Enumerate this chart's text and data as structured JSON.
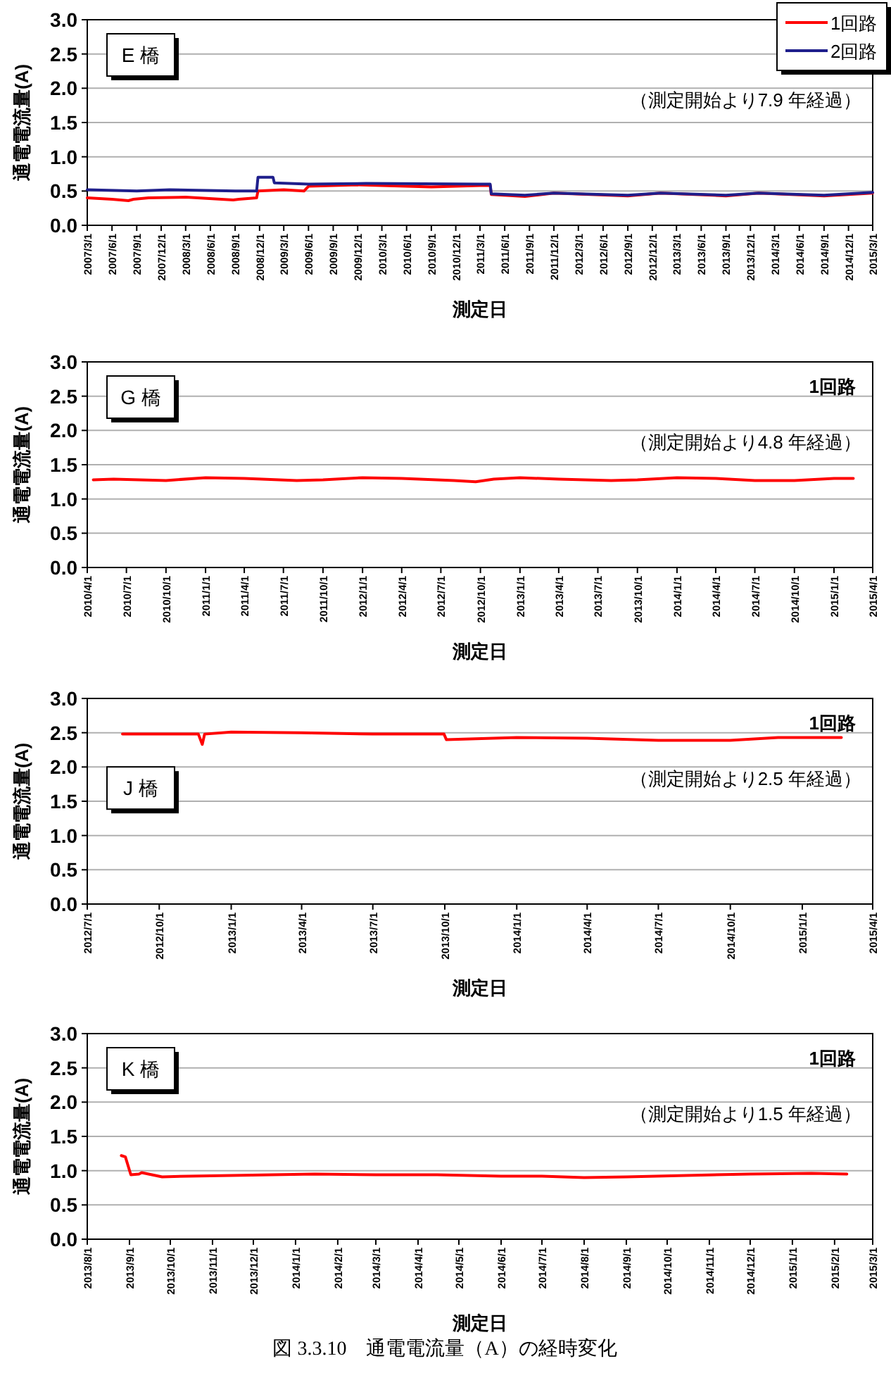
{
  "chart_data": [
    {
      "type": "line",
      "title": "E 橋",
      "xlabel": "測定日",
      "ylabel": "通電電流量(A)",
      "legend": "top right",
      "grid": "y",
      "xlim": [
        "2007-03-01",
        "2015-03-01"
      ],
      "ylim": [
        0,
        3
      ],
      "yticks": [
        {
          "value": 0,
          "label": "0.0"
        },
        {
          "value": 0.5,
          "label": "0.5"
        },
        {
          "value": 1,
          "label": "1.0"
        },
        {
          "value": 1.5,
          "label": "1.5"
        },
        {
          "value": 2,
          "label": "2.0"
        },
        {
          "value": 2.5,
          "label": "2.5"
        },
        {
          "value": 3,
          "label": "3.0"
        }
      ],
      "xticks": [
        {
          "value": "2007-03-01",
          "label": "2007/3/1"
        },
        {
          "value": "2007-06-01",
          "label": "2007/6/1"
        },
        {
          "value": "2007-09-01",
          "label": "2007/9/1"
        },
        {
          "value": "2007-12-01",
          "label": "2007/12/1"
        },
        {
          "value": "2008-03-01",
          "label": "2008/3/1"
        },
        {
          "value": "2008-06-01",
          "label": "2008/6/1"
        },
        {
          "value": "2008-09-01",
          "label": "2008/9/1"
        },
        {
          "value": "2008-12-01",
          "label": "2008/12/1"
        },
        {
          "value": "2009-03-01",
          "label": "2009/3/1"
        },
        {
          "value": "2009-06-01",
          "label": "2009/6/1"
        },
        {
          "value": "2009-09-01",
          "label": "2009/9/1"
        },
        {
          "value": "2009-12-01",
          "label": "2009/12/1"
        },
        {
          "value": "2010-03-01",
          "label": "2010/3/1"
        },
        {
          "value": "2010-06-01",
          "label": "2010/6/1"
        },
        {
          "value": "2010-09-01",
          "label": "2010/9/1"
        },
        {
          "value": "2010-12-01",
          "label": "2010/12/1"
        },
        {
          "value": "2011-03-01",
          "label": "2011/3/1"
        },
        {
          "value": "2011-06-01",
          "label": "2011/6/1"
        },
        {
          "value": "2011-09-01",
          "label": "2011/9/1"
        },
        {
          "value": "2011-12-01",
          "label": "2011/12/1"
        },
        {
          "value": "2012-03-01",
          "label": "2012/3/1"
        },
        {
          "value": "2012-06-01",
          "label": "2012/6/1"
        },
        {
          "value": "2012-09-01",
          "label": "2012/9/1"
        },
        {
          "value": "2012-12-01",
          "label": "2012/12/1"
        },
        {
          "value": "2013-03-01",
          "label": "2013/3/1"
        },
        {
          "value": "2013-06-01",
          "label": "2013/6/1"
        },
        {
          "value": "2013-09-01",
          "label": "2013/9/1"
        },
        {
          "value": "2013-12-01",
          "label": "2013/12/1"
        },
        {
          "value": "2014-03-01",
          "label": "2014/3/1"
        },
        {
          "value": "2014-06-01",
          "label": "2014/6/1"
        },
        {
          "value": "2014-09-01",
          "label": "2014/9/1"
        },
        {
          "value": "2014-12-01",
          "label": "2014/12/1"
        },
        {
          "value": "2015-03-01",
          "label": "2015/3/1"
        }
      ],
      "annotations": [
        "（測定開始より7.9 年経過）"
      ],
      "series": [
        {
          "name": "1回路",
          "color": "#ff0000",
          "x": [
            "2007-03-01",
            "2007-06-01",
            "2007-08-01",
            "2007-08-20",
            "2007-10-15",
            "2008-03-01",
            "2008-08-25",
            "2008-09-15",
            "2008-11-20",
            "2008-11-25",
            "2009-03-01",
            "2009-05-15",
            "2009-06-01",
            "2009-12-01",
            "2010-03-01",
            "2010-09-01",
            "2011-03-01",
            "2011-04-08",
            "2011-04-12",
            "2011-08-15",
            "2011-12-01",
            "2012-09-01",
            "2013-01-01",
            "2013-09-01",
            "2014-01-01",
            "2014-09-01",
            "2015-03-01"
          ],
          "values": [
            0.4,
            0.38,
            0.36,
            0.38,
            0.4,
            0.41,
            0.37,
            0.38,
            0.4,
            0.5,
            0.52,
            0.5,
            0.57,
            0.59,
            0.58,
            0.56,
            0.58,
            0.58,
            0.45,
            0.42,
            0.47,
            0.43,
            0.47,
            0.43,
            0.47,
            0.43,
            0.47
          ]
        },
        {
          "name": "2回路",
          "color": "#1f1f8c",
          "x": [
            "2007-03-01",
            "2007-09-01",
            "2008-01-01",
            "2008-09-01",
            "2008-11-20",
            "2008-11-25",
            "2009-01-20",
            "2009-01-25",
            "2009-06-01",
            "2010-01-01",
            "2011-03-01",
            "2011-04-08",
            "2011-04-12",
            "2011-08-15",
            "2011-12-01",
            "2012-09-01",
            "2013-01-01",
            "2013-09-01",
            "2014-01-01",
            "2014-09-01",
            "2015-03-01"
          ],
          "values": [
            0.52,
            0.5,
            0.52,
            0.5,
            0.5,
            0.7,
            0.7,
            0.62,
            0.6,
            0.61,
            0.6,
            0.6,
            0.46,
            0.44,
            0.47,
            0.44,
            0.47,
            0.44,
            0.47,
            0.44,
            0.48
          ]
        }
      ]
    },
    {
      "type": "line",
      "title": "G 橋",
      "xlabel": "測定日",
      "ylabel": "通電電流量(A)",
      "grid": "y",
      "xlim": [
        "2010-04-01",
        "2015-04-01"
      ],
      "ylim": [
        0,
        3
      ],
      "yticks": [
        {
          "value": 0,
          "label": "0.0"
        },
        {
          "value": 0.5,
          "label": "0.5"
        },
        {
          "value": 1,
          "label": "1.0"
        },
        {
          "value": 1.5,
          "label": "1.5"
        },
        {
          "value": 2,
          "label": "2.0"
        },
        {
          "value": 2.5,
          "label": "2.5"
        },
        {
          "value": 3,
          "label": "3.0"
        }
      ],
      "xticks": [
        {
          "value": "2010-04-01",
          "label": "2010/4/1"
        },
        {
          "value": "2010-07-01",
          "label": "2010/7/1"
        },
        {
          "value": "2010-10-01",
          "label": "2010/10/1"
        },
        {
          "value": "2011-01-01",
          "label": "2011/1/1"
        },
        {
          "value": "2011-04-01",
          "label": "2011/4/1"
        },
        {
          "value": "2011-07-01",
          "label": "2011/7/1"
        },
        {
          "value": "2011-10-01",
          "label": "2011/10/1"
        },
        {
          "value": "2012-01-01",
          "label": "2012/1/1"
        },
        {
          "value": "2012-04-01",
          "label": "2012/4/1"
        },
        {
          "value": "2012-07-01",
          "label": "2012/7/1"
        },
        {
          "value": "2012-10-01",
          "label": "2012/10/1"
        },
        {
          "value": "2013-01-01",
          "label": "2013/1/1"
        },
        {
          "value": "2013-04-01",
          "label": "2013/4/1"
        },
        {
          "value": "2013-07-01",
          "label": "2013/7/1"
        },
        {
          "value": "2013-10-01",
          "label": "2013/10/1"
        },
        {
          "value": "2014-01-01",
          "label": "2014/1/1"
        },
        {
          "value": "2014-04-01",
          "label": "2014/4/1"
        },
        {
          "value": "2014-07-01",
          "label": "2014/7/1"
        },
        {
          "value": "2014-10-01",
          "label": "2014/10/1"
        },
        {
          "value": "2015-01-01",
          "label": "2015/1/1"
        },
        {
          "value": "2015-04-01",
          "label": "2015/4/1"
        }
      ],
      "annotations": [
        "1回路",
        "（測定開始より4.8 年経過）"
      ],
      "series": [
        {
          "color": "#ff0000",
          "x": [
            "2010-04-15",
            "2010-06-01",
            "2010-10-01",
            "2011-01-01",
            "2011-04-01",
            "2011-08-01",
            "2011-10-01",
            "2012-01-01",
            "2012-04-01",
            "2012-08-01",
            "2012-09-20",
            "2012-11-01",
            "2013-01-01",
            "2013-04-01",
            "2013-08-01",
            "2013-10-01",
            "2014-01-01",
            "2014-04-01",
            "2014-07-01",
            "2014-10-01",
            "2015-01-01",
            "2015-02-15"
          ],
          "values": [
            1.28,
            1.29,
            1.27,
            1.31,
            1.3,
            1.27,
            1.28,
            1.31,
            1.3,
            1.27,
            1.25,
            1.29,
            1.31,
            1.29,
            1.27,
            1.28,
            1.31,
            1.3,
            1.27,
            1.27,
            1.3,
            1.3
          ]
        }
      ]
    },
    {
      "type": "line",
      "title": "J 橋",
      "xlabel": "測定日",
      "ylabel": "通電電流量(A)",
      "grid": "y",
      "xlim": [
        "2012-07-01",
        "2015-04-01"
      ],
      "ylim": [
        0,
        3
      ],
      "yticks": [
        {
          "value": 0,
          "label": "0.0"
        },
        {
          "value": 0.5,
          "label": "0.5"
        },
        {
          "value": 1,
          "label": "1.0"
        },
        {
          "value": 1.5,
          "label": "1.5"
        },
        {
          "value": 2,
          "label": "2.0"
        },
        {
          "value": 2.5,
          "label": "2.5"
        },
        {
          "value": 3,
          "label": "3.0"
        }
      ],
      "xticks": [
        {
          "value": "2012-07-01",
          "label": "2012/7/1"
        },
        {
          "value": "2012-10-01",
          "label": "2012/10/1"
        },
        {
          "value": "2013-01-01",
          "label": "2013/1/1"
        },
        {
          "value": "2013-04-01",
          "label": "2013/4/1"
        },
        {
          "value": "2013-07-01",
          "label": "2013/7/1"
        },
        {
          "value": "2013-10-01",
          "label": "2013/10/1"
        },
        {
          "value": "2014-01-01",
          "label": "2014/1/1"
        },
        {
          "value": "2014-04-01",
          "label": "2014/4/1"
        },
        {
          "value": "2014-07-01",
          "label": "2014/7/1"
        },
        {
          "value": "2014-10-01",
          "label": "2014/10/1"
        },
        {
          "value": "2015-01-01",
          "label": "2015/1/1"
        },
        {
          "value": "2015-04-01",
          "label": "2015/4/1"
        }
      ],
      "annotations": [
        "1回路",
        "（測定開始より2.5 年経過）"
      ],
      "series": [
        {
          "color": "#ff0000",
          "x": [
            "2012-08-15",
            "2012-11-20",
            "2012-11-25",
            "2012-11-28",
            "2013-01-01",
            "2013-04-01",
            "2013-07-01",
            "2013-09-30",
            "2013-10-03",
            "2014-01-01",
            "2014-04-01",
            "2014-07-01",
            "2014-10-01",
            "2014-12-01",
            "2015-02-20"
          ],
          "values": [
            2.48,
            2.48,
            2.33,
            2.48,
            2.51,
            2.5,
            2.48,
            2.48,
            2.4,
            2.43,
            2.42,
            2.39,
            2.39,
            2.43,
            2.43
          ]
        }
      ]
    },
    {
      "type": "line",
      "title": "K 橋",
      "xlabel": "測定日",
      "ylabel": "通電電流量(A)",
      "grid": "y",
      "xlim": [
        "2013-08-01",
        "2015-03-01"
      ],
      "ylim": [
        0,
        3
      ],
      "yticks": [
        {
          "value": 0,
          "label": "0.0"
        },
        {
          "value": 0.5,
          "label": "0.5"
        },
        {
          "value": 1,
          "label": "1.0"
        },
        {
          "value": 1.5,
          "label": "1.5"
        },
        {
          "value": 2,
          "label": "2.0"
        },
        {
          "value": 2.5,
          "label": "2.5"
        },
        {
          "value": 3,
          "label": "3.0"
        }
      ],
      "xticks": [
        {
          "value": "2013-08-01",
          "label": "2013/8/1"
        },
        {
          "value": "2013-09-01",
          "label": "2013/9/1"
        },
        {
          "value": "2013-10-01",
          "label": "2013/10/1"
        },
        {
          "value": "2013-11-01",
          "label": "2013/11/1"
        },
        {
          "value": "2013-12-01",
          "label": "2013/12/1"
        },
        {
          "value": "2014-01-01",
          "label": "2014/1/1"
        },
        {
          "value": "2014-02-01",
          "label": "2014/2/1"
        },
        {
          "value": "2014-03-01",
          "label": "2014/3/1"
        },
        {
          "value": "2014-04-01",
          "label": "2014/4/1"
        },
        {
          "value": "2014-05-01",
          "label": "2014/5/1"
        },
        {
          "value": "2014-06-01",
          "label": "2014/6/1"
        },
        {
          "value": "2014-07-01",
          "label": "2014/7/1"
        },
        {
          "value": "2014-08-01",
          "label": "2014/8/1"
        },
        {
          "value": "2014-09-01",
          "label": "2014/9/1"
        },
        {
          "value": "2014-10-01",
          "label": "2014/10/1"
        },
        {
          "value": "2014-11-01",
          "label": "2014/11/1"
        },
        {
          "value": "2014-12-01",
          "label": "2014/12/1"
        },
        {
          "value": "2015-01-01",
          "label": "2015/1/1"
        },
        {
          "value": "2015-02-01",
          "label": "2015/2/1"
        },
        {
          "value": "2015-03-01",
          "label": "2015/3/1"
        }
      ],
      "annotations": [
        "1回路",
        "（測定開始より1.5 年経過）",
        "図 3.3.10　通電電流量（A）の経時変化"
      ],
      "series": [
        {
          "color": "#ff0000",
          "x": [
            "2013-08-26",
            "2013-08-29",
            "2013-09-02",
            "2013-09-08",
            "2013-09-10",
            "2013-09-25",
            "2013-10-15",
            "2013-11-15",
            "2013-12-15",
            "2014-01-15",
            "2014-03-01",
            "2014-04-15",
            "2014-06-01",
            "2014-07-01",
            "2014-08-01",
            "2014-09-01",
            "2014-10-15",
            "2014-12-01",
            "2015-01-15",
            "2015-02-10"
          ],
          "values": [
            1.22,
            1.2,
            0.94,
            0.95,
            0.97,
            0.91,
            0.92,
            0.93,
            0.94,
            0.95,
            0.94,
            0.94,
            0.92,
            0.92,
            0.9,
            0.91,
            0.93,
            0.95,
            0.96,
            0.95
          ]
        }
      ]
    }
  ]
}
